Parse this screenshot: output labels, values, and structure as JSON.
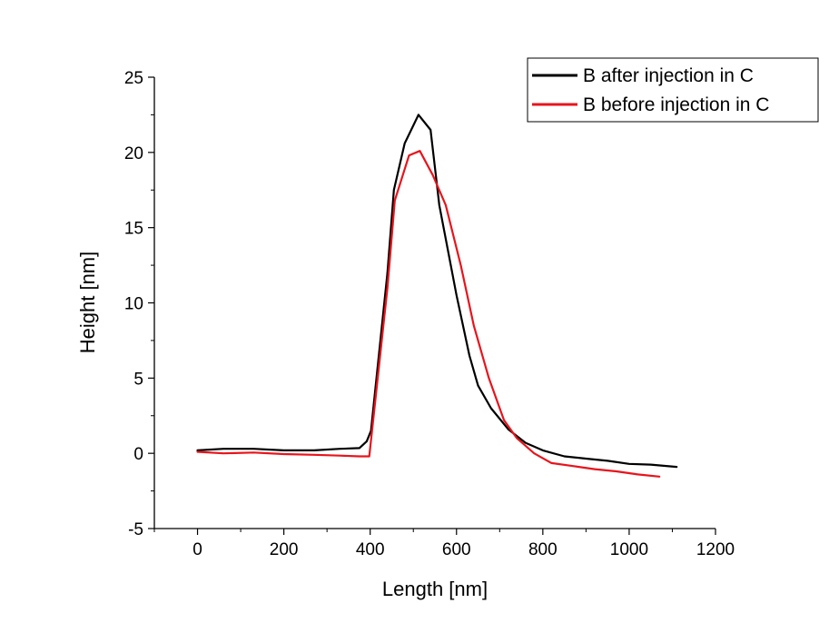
{
  "chart_data": {
    "type": "line",
    "title": "",
    "xlabel": "Length [nm]",
    "ylabel": "Height [nm]",
    "xlim": [
      -100,
      1200
    ],
    "ylim": [
      -5,
      25
    ],
    "x_ticks": [
      0,
      200,
      400,
      600,
      800,
      1000,
      1200
    ],
    "y_ticks": [
      -5,
      0,
      5,
      10,
      15,
      20,
      25
    ],
    "grid": false,
    "legend_position": "top-right",
    "series": [
      {
        "name": "B after injection in C",
        "color": "#000000",
        "points": [
          [
            0,
            0.2
          ],
          [
            60,
            0.3
          ],
          [
            130,
            0.3
          ],
          [
            200,
            0.2
          ],
          [
            270,
            0.2
          ],
          [
            330,
            0.3
          ],
          [
            375,
            0.35
          ],
          [
            392,
            0.8
          ],
          [
            402,
            1.5
          ],
          [
            440,
            12
          ],
          [
            455,
            17.5
          ],
          [
            480,
            20.6
          ],
          [
            512,
            22.5
          ],
          [
            540,
            21.5
          ],
          [
            560,
            16.5
          ],
          [
            600,
            10.5
          ],
          [
            630,
            6.5
          ],
          [
            650,
            4.5
          ],
          [
            680,
            3.0
          ],
          [
            720,
            1.6
          ],
          [
            760,
            0.7
          ],
          [
            800,
            0.2
          ],
          [
            850,
            -0.2
          ],
          [
            900,
            -0.35
          ],
          [
            950,
            -0.5
          ],
          [
            1000,
            -0.7
          ],
          [
            1050,
            -0.75
          ],
          [
            1110,
            -0.9
          ]
        ]
      },
      {
        "name": "B before injection in C",
        "color": "#e8141c",
        "points": [
          [
            0,
            0.1
          ],
          [
            60,
            0.0
          ],
          [
            130,
            0.05
          ],
          [
            200,
            -0.05
          ],
          [
            270,
            -0.1
          ],
          [
            330,
            -0.15
          ],
          [
            375,
            -0.2
          ],
          [
            398,
            -0.2
          ],
          [
            440,
            11
          ],
          [
            457,
            16.8
          ],
          [
            490,
            19.8
          ],
          [
            515,
            20.1
          ],
          [
            545,
            18.5
          ],
          [
            575,
            16.5
          ],
          [
            610,
            12.5
          ],
          [
            640,
            8.5
          ],
          [
            675,
            5.0
          ],
          [
            710,
            2.2
          ],
          [
            740,
            1.0
          ],
          [
            780,
            0.0
          ],
          [
            820,
            -0.65
          ],
          [
            870,
            -0.85
          ],
          [
            920,
            -1.05
          ],
          [
            970,
            -1.2
          ],
          [
            1020,
            -1.4
          ],
          [
            1070,
            -1.55
          ]
        ]
      }
    ]
  }
}
